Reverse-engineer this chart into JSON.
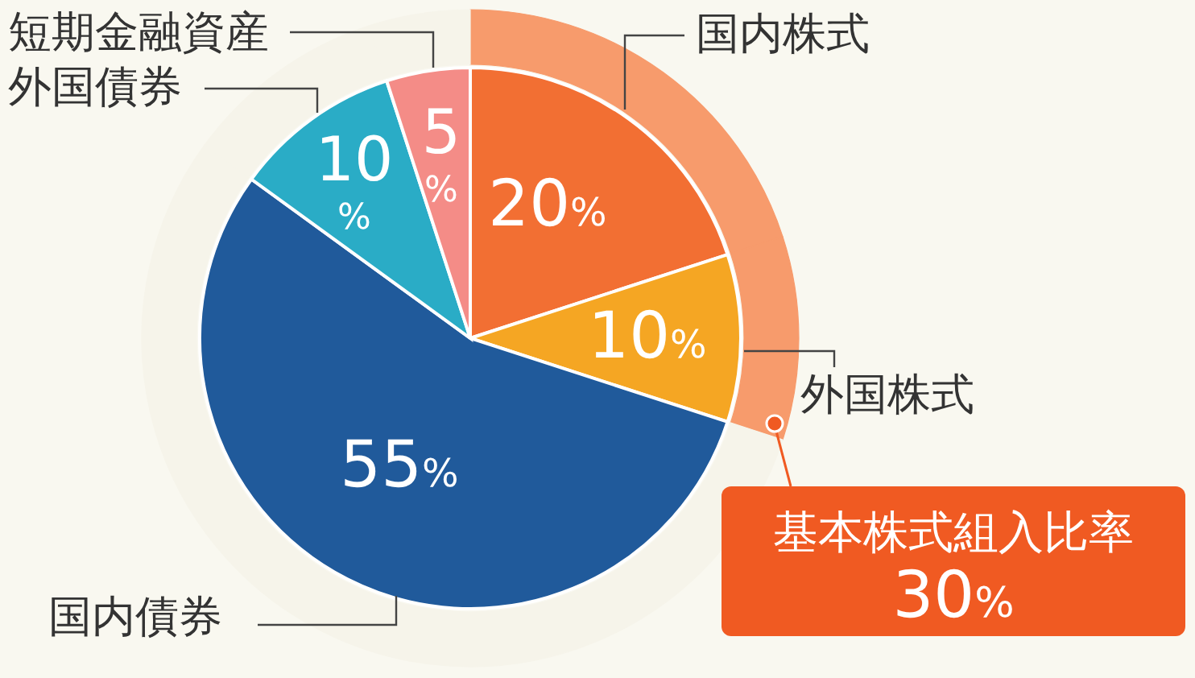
{
  "chart_data": {
    "type": "pie",
    "categories": [
      "国内株式",
      "外国株式",
      "国内債券",
      "外国債券",
      "短期金融資産"
    ],
    "series": [
      {
        "type": "donut",
        "values": [
          20,
          10,
          55,
          10,
          5
        ],
        "colors": [
          "#f79b6c",
          "#f79b6c",
          "#f6f4ea",
          "#f6f4ea",
          "#f6f4ea"
        ]
      },
      {
        "values": [
          20,
          10,
          55,
          10,
          5
        ],
        "value_labels": [
          "20%",
          "10%",
          "55%",
          "10%",
          "5%"
        ],
        "colors": [
          "#f26f33",
          "#f5a623",
          "#205a9b",
          "#2aacc6",
          "#f48c87"
        ]
      }
    ],
    "annotations": [
      "基本株式組入比率 30%"
    ]
  }
}
